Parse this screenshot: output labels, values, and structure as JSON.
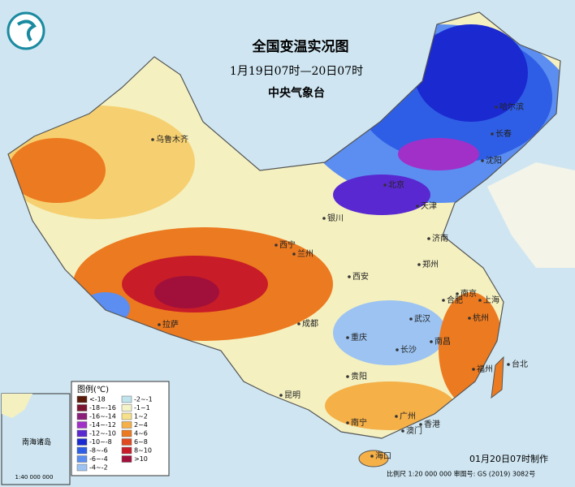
{
  "header": {
    "title": "全国变温实况图",
    "period": "1月19日07时—20日07时",
    "agency": "中央气象台"
  },
  "cities": [
    "乌鲁木齐",
    "哈尔滨",
    "长春",
    "沈阳",
    "北京",
    "天津",
    "银川",
    "济南",
    "西宁",
    "兰州",
    "郑州",
    "西安",
    "合肥",
    "南京",
    "上海",
    "拉萨",
    "成都",
    "武汉",
    "杭州",
    "重庆",
    "长沙",
    "南昌",
    "台北",
    "福州",
    "贵阳",
    "昆明",
    "南宁",
    "广州",
    "香港",
    "澳门",
    "海口"
  ],
  "legend": {
    "title": "图例(℃)",
    "items": [
      {
        "label": "<-18",
        "color": "#5a1a0a"
      },
      {
        "label": "-18~-16",
        "color": "#7a1430"
      },
      {
        "label": "-16~-14",
        "color": "#8a1e7a"
      },
      {
        "label": "-14~-12",
        "color": "#a030c8"
      },
      {
        "label": "-12~-10",
        "color": "#5a28d0"
      },
      {
        "label": "-10~-8",
        "color": "#1a2ad0"
      },
      {
        "label": "-8~-6",
        "color": "#2f5ee6"
      },
      {
        "label": "-6~-4",
        "color": "#5b8ef0"
      },
      {
        "label": "-4~-2",
        "color": "#9cc3f2"
      },
      {
        "label": "-2~-1",
        "color": "#bfe4ec"
      },
      {
        "label": "-1~1",
        "color": "#f4f4c8"
      },
      {
        "label": "1~2",
        "color": "#f6e08a"
      },
      {
        "label": "2~4",
        "color": "#f5b048"
      },
      {
        "label": "4~6",
        "color": "#ec7a20"
      },
      {
        "label": "6~8",
        "color": "#e04a20"
      },
      {
        "label": "8~10",
        "color": "#c81c28"
      },
      {
        "label": ">10",
        "color": "#a0103a"
      }
    ]
  },
  "footer": {
    "made": "01月20日07时制作",
    "scale": "比例尺 1:20 000 000 审图号: GS (2019) 3082号"
  },
  "inset": {
    "title": "南海诸岛",
    "scale": "1:40 000 000"
  }
}
